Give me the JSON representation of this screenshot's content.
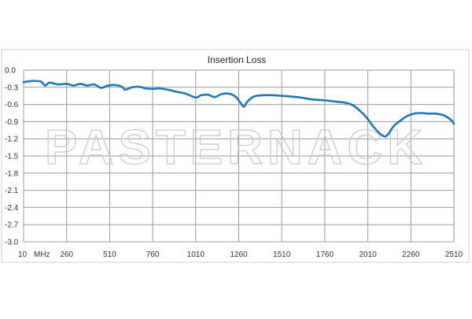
{
  "chart_data": {
    "type": "line",
    "title": "Insertion Loss",
    "xlabel": "",
    "ylabel": "",
    "x_unit_label": "MHz",
    "xlim": [
      10,
      2510
    ],
    "ylim": [
      -3.0,
      0.0
    ],
    "x_ticks": [
      10,
      260,
      510,
      760,
      1010,
      1260,
      1510,
      1760,
      2010,
      2260,
      2510
    ],
    "x_tick_labels": [
      "10",
      "260",
      "510",
      "760",
      "1010",
      "1260",
      "1510",
      "1760",
      "2010",
      "2260",
      "2510"
    ],
    "y_ticks": [
      0.0,
      -0.3,
      -0.6,
      -0.9,
      -1.2,
      -1.5,
      -1.8,
      -2.1,
      -2.4,
      -2.7,
      -3.0
    ],
    "y_tick_labels": [
      "0.0",
      "-0.3",
      "-0.6",
      "-0.9",
      "-1.2",
      "-1.5",
      "-1.8",
      "-2.1",
      "-2.4",
      "-2.7",
      "-3.0"
    ],
    "grid": true,
    "legend": "none",
    "series": [
      {
        "color": "#2176b5",
        "x": [
          10,
          60,
          110,
          135,
          160,
          210,
          260,
          300,
          340,
          380,
          420,
          460,
          500,
          540,
          580,
          600,
          640,
          680,
          720,
          760,
          800,
          860,
          900,
          950,
          1010,
          1040,
          1080,
          1120,
          1160,
          1200,
          1240,
          1270,
          1290,
          1310,
          1350,
          1400,
          1460,
          1510,
          1560,
          1620,
          1680,
          1760,
          1820,
          1880,
          1920,
          1960,
          2000,
          2040,
          2080,
          2110,
          2130,
          2160,
          2200,
          2240,
          2280,
          2320,
          2360,
          2400,
          2440,
          2470,
          2500,
          2510
        ],
        "y": [
          -0.21,
          -0.19,
          -0.2,
          -0.27,
          -0.22,
          -0.25,
          -0.24,
          -0.27,
          -0.24,
          -0.27,
          -0.25,
          -0.31,
          -0.27,
          -0.26,
          -0.29,
          -0.34,
          -0.3,
          -0.29,
          -0.32,
          -0.33,
          -0.32,
          -0.35,
          -0.38,
          -0.41,
          -0.48,
          -0.44,
          -0.43,
          -0.47,
          -0.42,
          -0.41,
          -0.46,
          -0.57,
          -0.64,
          -0.55,
          -0.46,
          -0.44,
          -0.44,
          -0.45,
          -0.46,
          -0.48,
          -0.51,
          -0.53,
          -0.55,
          -0.57,
          -0.61,
          -0.7,
          -0.82,
          -0.98,
          -1.11,
          -1.16,
          -1.11,
          -0.98,
          -0.88,
          -0.8,
          -0.76,
          -0.75,
          -0.76,
          -0.76,
          -0.78,
          -0.82,
          -0.89,
          -0.94
        ]
      }
    ]
  },
  "watermark": {
    "text": "PASTERNACK"
  },
  "style": {
    "line_color": "#2176b5",
    "grid_color": "#9a9a9a",
    "frame_color": "#9a9a9a",
    "watermark_color": "#c8c8c8"
  }
}
